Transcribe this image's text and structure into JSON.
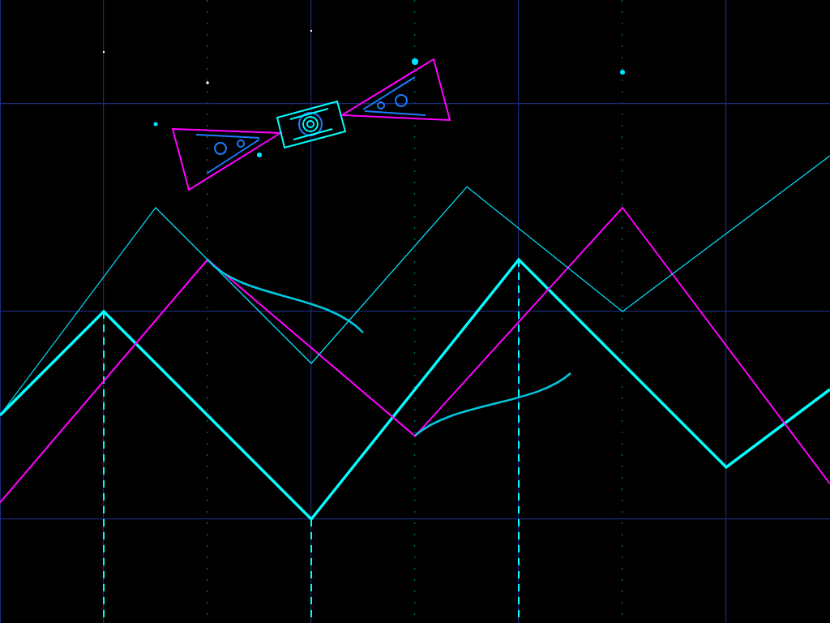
{
  "chart_data": {
    "type": "line",
    "xlim": [
      0,
      8
    ],
    "xticks": [
      1,
      2,
      3,
      4,
      5,
      6,
      7
    ],
    "ylim": [
      0,
      6
    ],
    "yticks": [
      1,
      3,
      5
    ],
    "grid": true,
    "tick_labels": false,
    "series": [
      {
        "color": "#00e5ff",
        "x": [
          0,
          1.5,
          3,
          4.5,
          6,
          8
        ],
        "values": [
          2,
          4,
          2.5,
          4.2,
          3,
          4.5
        ]
      },
      {
        "color": "#ff00ff",
        "x": [
          0,
          2,
          4,
          6,
          8
        ],
        "values": [
          1.16,
          3.5,
          1.8,
          4,
          1.34
        ]
      },
      {
        "color": "#00ffff",
        "x": [
          0,
          1,
          3,
          5,
          7,
          8
        ],
        "values": [
          2,
          3,
          1,
          3.5,
          1.5,
          2.25
        ]
      }
    ]
  }
}
